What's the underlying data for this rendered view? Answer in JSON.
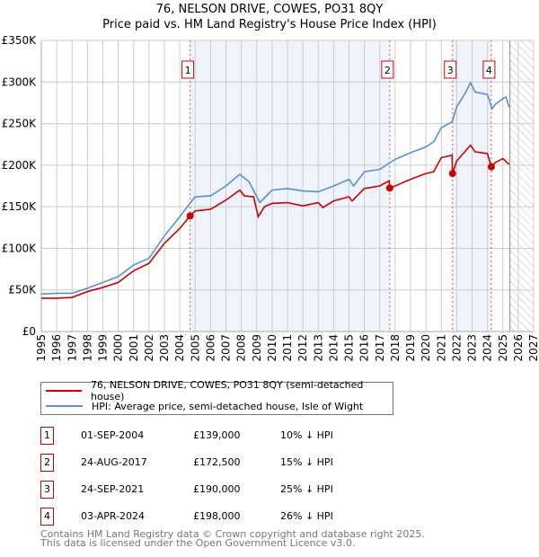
{
  "title": "76, NELSON DRIVE, COWES, PO31 8QY",
  "subtitle": "Price paid vs. HM Land Registry's House Price Index (HPI)",
  "colors": {
    "property": "#cc0000",
    "hpi": "#5b8fd4",
    "shade": "#eef3fc"
  },
  "chart_data": {
    "type": "line",
    "xlim": [
      1995,
      2027
    ],
    "ylim": [
      0,
      350000
    ],
    "yticks": [
      {
        "v": 0,
        "label": "£0"
      },
      {
        "v": 50000,
        "label": "£50K"
      },
      {
        "v": 100000,
        "label": "£100K"
      },
      {
        "v": 150000,
        "label": "£150K"
      },
      {
        "v": 200000,
        "label": "£200K"
      },
      {
        "v": 250000,
        "label": "£250K"
      },
      {
        "v": 300000,
        "label": "£300K"
      },
      {
        "v": 350000,
        "label": "£350K"
      }
    ],
    "xticks": [
      "1995",
      "1996",
      "1997",
      "1998",
      "1999",
      "2000",
      "2001",
      "2002",
      "2003",
      "2004",
      "2005",
      "2006",
      "2007",
      "2008",
      "2009",
      "2010",
      "2011",
      "2012",
      "2013",
      "2014",
      "2015",
      "2016",
      "2017",
      "2018",
      "2019",
      "2020",
      "2021",
      "2022",
      "2023",
      "2024",
      "2025",
      "2026",
      "2027"
    ],
    "shaded_ranges": [
      [
        2004.67,
        2017.65
      ],
      [
        2021.73,
        2024.25
      ]
    ],
    "forecast_hatch_from": 2025.46,
    "series": [
      {
        "name": "76, NELSON DRIVE, COWES, PO31 8QY (semi-detached house)",
        "color": "#cc0000",
        "x": [
          1995,
          1996,
          1997,
          1998,
          1999,
          2000,
          2001,
          2002,
          2003,
          2004,
          2004.67,
          2005,
          2006,
          2007,
          2007.9,
          2008.2,
          2008.8,
          2009.1,
          2009.5,
          2010,
          2011,
          2012,
          2013,
          2013.3,
          2014,
          2015,
          2015.2,
          2016,
          2017,
          2017.6,
          2017.65,
          2018,
          2019,
          2020,
          2020.5,
          2021,
          2021.7,
          2021.73,
          2022,
          2022.9,
          2023.2,
          2024,
          2024.25,
          2024.5,
          2025,
          2025.4
        ],
        "y": [
          40000,
          40000,
          41000,
          48000,
          53000,
          59000,
          73000,
          82000,
          106000,
          124000,
          139000,
          145000,
          147000,
          158000,
          170000,
          163000,
          162000,
          138000,
          150000,
          154000,
          155000,
          151000,
          155000,
          149000,
          157000,
          162000,
          157000,
          172000,
          175000,
          181000,
          172500,
          175000,
          183000,
          190000,
          192000,
          209000,
          212000,
          190000,
          205000,
          224000,
          216000,
          214000,
          198000,
          203000,
          208000,
          201000
        ]
      },
      {
        "name": "HPI: Average price, semi-detached house, Isle of Wight",
        "color": "#5b8fd4",
        "x": [
          1995,
          1996,
          1997,
          1998,
          1999,
          2000,
          2001,
          2002,
          2003,
          2004,
          2004.7,
          2005,
          2006,
          2007,
          2007.9,
          2008.5,
          2009.2,
          2010,
          2011,
          2012,
          2013,
          2014,
          2015,
          2015.3,
          2016,
          2017,
          2017.65,
          2018,
          2019,
          2020,
          2020.5,
          2021,
          2021.7,
          2022,
          2022.5,
          2022.9,
          2023.2,
          2024,
          2024.3,
          2024.5,
          2025,
          2025.2,
          2025.4
        ],
        "y": [
          45000,
          46000,
          46000,
          52000,
          59000,
          66000,
          80000,
          88000,
          115000,
          138000,
          155000,
          162000,
          163000,
          175000,
          189000,
          180000,
          155000,
          170000,
          172000,
          169000,
          168000,
          175000,
          183000,
          175000,
          192000,
          195000,
          203000,
          207000,
          215000,
          222000,
          228000,
          245000,
          252000,
          270000,
          285000,
          299000,
          288000,
          285000,
          268000,
          273000,
          280000,
          282000,
          270000
        ]
      }
    ],
    "sales": [
      {
        "n": "1",
        "x": 2004.67,
        "y": 139000
      },
      {
        "n": "2",
        "x": 2017.65,
        "y": 172500
      },
      {
        "n": "3",
        "x": 2021.73,
        "y": 190000
      },
      {
        "n": "4",
        "x": 2024.25,
        "y": 198000
      }
    ]
  },
  "legend": {
    "property": "76, NELSON DRIVE, COWES, PO31 8QY (semi-detached house)",
    "hpi": "HPI: Average price, semi-detached house, Isle of Wight"
  },
  "transactions": [
    {
      "n": "1",
      "date": "01-SEP-2004",
      "price": "£139,000",
      "hpi": "10% ↓ HPI"
    },
    {
      "n": "2",
      "date": "24-AUG-2017",
      "price": "£172,500",
      "hpi": "15% ↓ HPI"
    },
    {
      "n": "3",
      "date": "24-SEP-2021",
      "price": "£190,000",
      "hpi": "25% ↓ HPI"
    },
    {
      "n": "4",
      "date": "03-APR-2024",
      "price": "£198,000",
      "hpi": "26% ↓ HPI"
    }
  ],
  "footer": {
    "line1": "Contains HM Land Registry data © Crown copyright and database right 2025.",
    "line2": "This data is licensed under the Open Government Licence v3.0."
  }
}
